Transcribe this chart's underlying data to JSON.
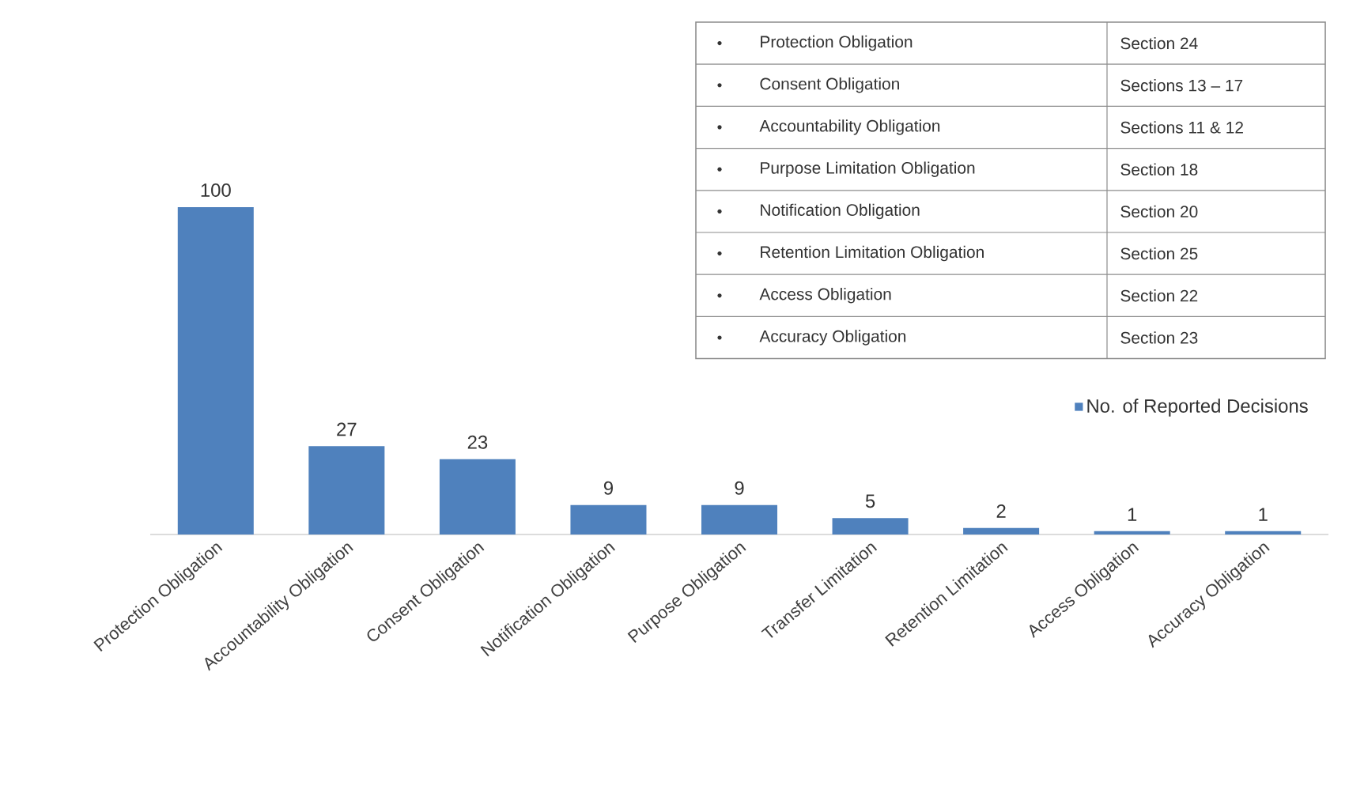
{
  "chart_data": [
    {
      "type": "bar",
      "categories": [
        "Protection Obligation",
        "Accountability Obligation",
        "Consent Obligation",
        "Notification Obligation",
        "Purpose Obligation",
        "Transfer Limitation",
        "Retention Limitation",
        "Access Obligation",
        "Accuracy Obligation"
      ],
      "series": [
        {
          "name": "No. of Reported Decisions",
          "color": "#4f81bd",
          "values": [
            100,
            27,
            23,
            9,
            9,
            5,
            2,
            1,
            1
          ]
        }
      ],
      "data_labels": true,
      "legend": "right"
    },
    {
      "type": "other",
      "annotations": [
        "Protection Obligation",
        "Section 24",
        "Consent Obligation",
        "Sections 13 – 17",
        "Accountability Obligation",
        "Sections 11 & 12",
        "Purpose Limitation Obligation",
        "Section 18",
        "Notification Obligation",
        "Section 20",
        "Retention Limitation Obligation",
        "Section 25",
        "Access Obligation",
        "Section 22",
        "Accuracy Obligation",
        "Section 23"
      ]
    }
  ]
}
